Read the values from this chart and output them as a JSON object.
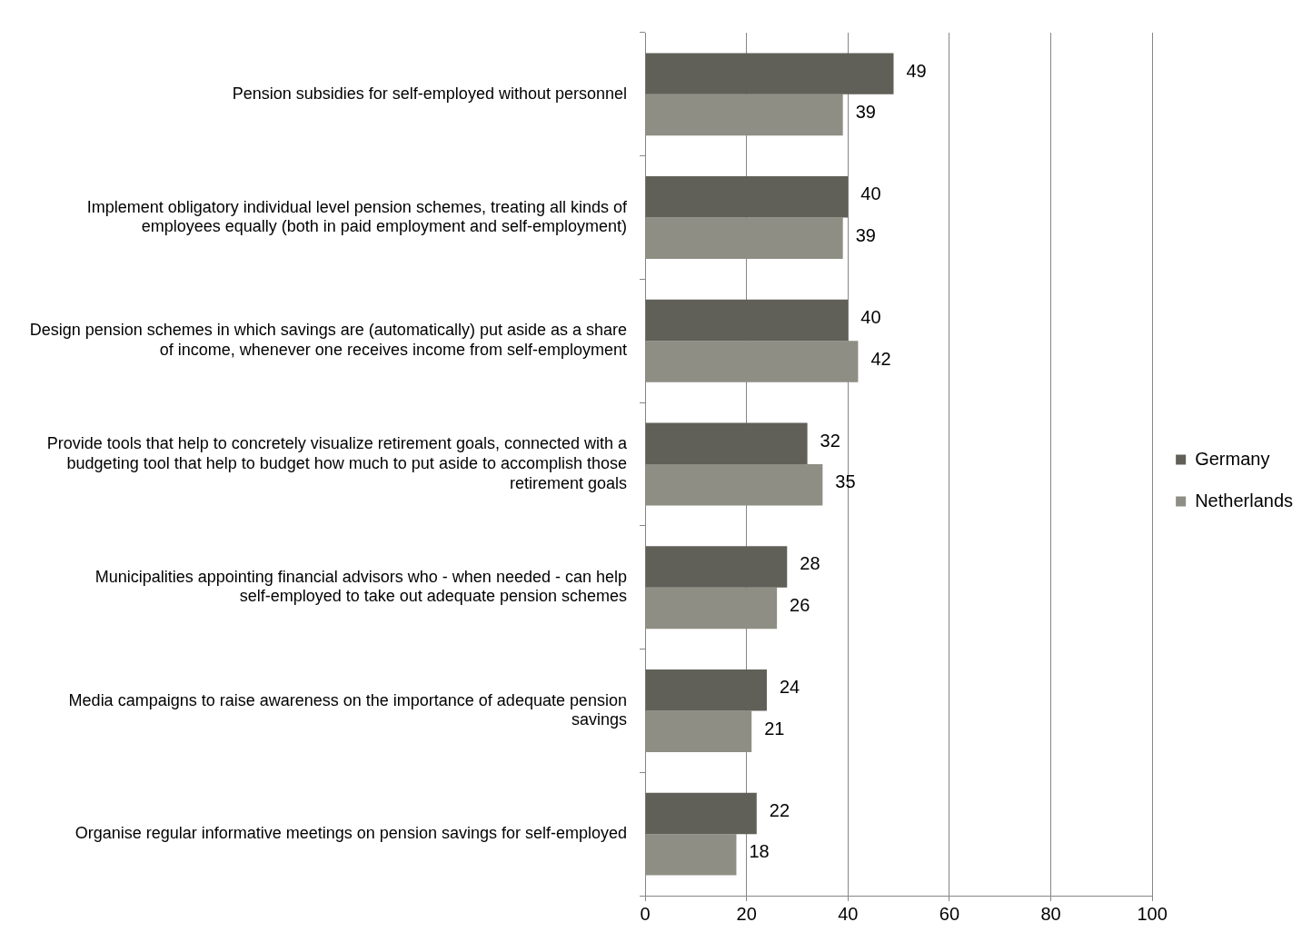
{
  "chart_data": {
    "type": "bar",
    "orientation": "horizontal",
    "categories": [
      "Pension subsidies for self-employed without personnel",
      "Implement obligatory individual level pension schemes, treating all kinds of employees equally (both in paid employment and self-employment)",
      "Design pension schemes in which savings are (automatically) put aside as a share of income, whenever one receives income from self-employment",
      "Provide tools that help to concretely visualize retirement goals, connected with a budgeting tool that help to budget how much to put aside to accomplish those retirement goals",
      "Municipalities appointing financial advisors who - when needed - can help self-employed to take out adequate pension schemes",
      "Media campaigns to raise awareness on the importance of adequate pension savings",
      "Organise regular informative meetings on pension savings for self-employed"
    ],
    "series": [
      {
        "name": "Germany",
        "color": "#606058",
        "values": [
          49,
          40,
          40,
          32,
          28,
          24,
          22
        ]
      },
      {
        "name": "Netherlands",
        "color": "#8e8e84",
        "values": [
          39,
          39,
          42,
          35,
          26,
          21,
          18
        ]
      }
    ],
    "xlim": [
      0,
      100
    ],
    "xticks": [
      0,
      20,
      40,
      60,
      80,
      100
    ],
    "grid": "x",
    "legend": "right",
    "data_labels": true
  }
}
